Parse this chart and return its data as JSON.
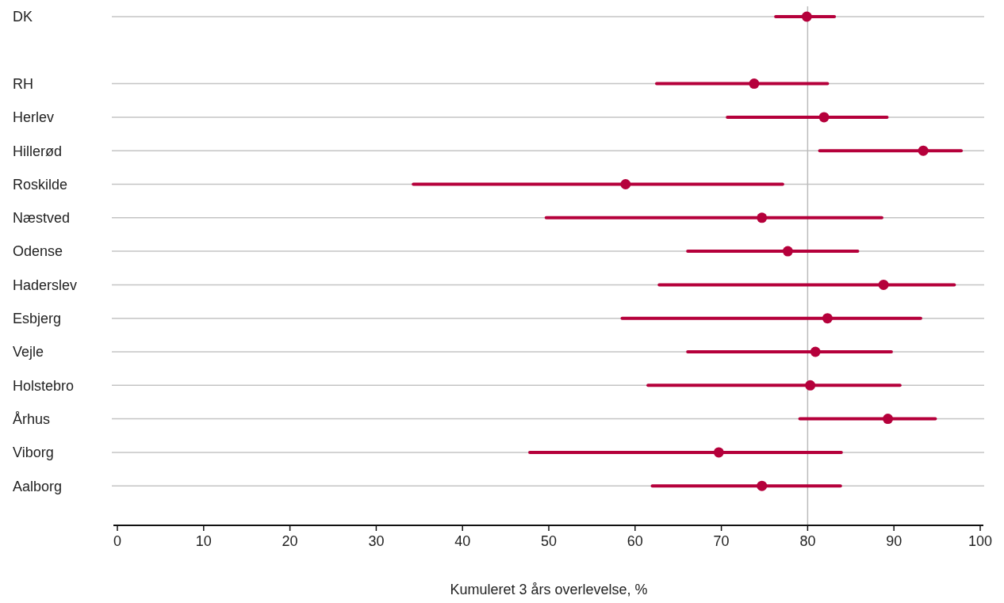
{
  "chart_data": {
    "type": "scatter",
    "orientation": "horizontal",
    "xlabel": "Kumuleret 3 års overlevelse, %",
    "categories": [
      "DK",
      null,
      "RH",
      "Herlev",
      "Hillerød",
      "Roskilde",
      "Næstved",
      "Odense",
      "Haderslev",
      "Esbjerg",
      "Vejle",
      "Holstebro",
      "Århus",
      "Viborg",
      "Aalborg"
    ],
    "series": [
      {
        "color": "#b5003b",
        "values": [
          79.9,
          null,
          73.8,
          81.9,
          93.4,
          58.9,
          74.7,
          77.7,
          88.8,
          82.3,
          80.9,
          80.3,
          89.3,
          69.7,
          74.7
        ],
        "errors": [
          [
            76.3,
            83.1
          ],
          null,
          [
            62.5,
            82.3
          ],
          [
            70.7,
            89.2
          ],
          [
            81.4,
            97.8
          ],
          [
            34.3,
            77.1
          ],
          [
            49.7,
            88.6
          ],
          [
            66.1,
            85.8
          ],
          [
            62.8,
            97.0
          ],
          [
            58.5,
            93.1
          ],
          [
            66.1,
            89.7
          ],
          [
            61.5,
            90.7
          ],
          [
            79.1,
            94.8
          ],
          [
            47.8,
            83.9
          ],
          [
            62.0,
            83.8
          ]
        ]
      }
    ],
    "xlim": [
      0,
      100
    ],
    "xticks": [
      0,
      10,
      20,
      30,
      40,
      50,
      60,
      70,
      80,
      90,
      100
    ],
    "grid": "y",
    "marker": "circle",
    "ref_lines": [
      {
        "axis": "x",
        "value": 80,
        "color": "#bbbbbb"
      }
    ]
  }
}
